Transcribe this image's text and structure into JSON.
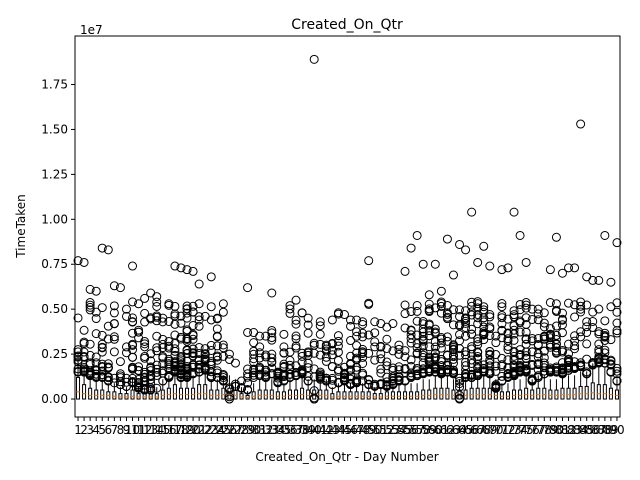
{
  "chart_data": {
    "type": "box",
    "title": "Created_On_Qtr",
    "xlabel": "Created_On_Qtr - Day Number",
    "ylabel": "TimeTaken",
    "y_offset_label": "1e7",
    "ylim": [
      -0.1,
      2.02
    ],
    "yticks": [
      0.0,
      0.25,
      0.5,
      0.75,
      1.0,
      1.25,
      1.5,
      1.75
    ],
    "ytick_labels": [
      "0.00",
      "0.25",
      "0.50",
      "0.75",
      "1.00",
      "1.25",
      "1.50",
      "1.75"
    ],
    "categories": [
      "1",
      "2",
      "3",
      "4",
      "5",
      "6",
      "7",
      "8",
      "9",
      "10",
      "11",
      "12",
      "13",
      "14",
      "15",
      "16",
      "17",
      "18",
      "19",
      "20",
      "21",
      "22",
      "23",
      "24",
      "25",
      "26",
      "27",
      "28",
      "29",
      "30",
      "31",
      "32",
      "33",
      "34",
      "35",
      "36",
      "37",
      "38",
      "39",
      "40",
      "41",
      "42",
      "43",
      "44",
      "45",
      "46",
      "47",
      "48",
      "49",
      "50",
      "51",
      "52",
      "53",
      "54",
      "55",
      "56",
      "57",
      "58",
      "59",
      "60",
      "61",
      "62",
      "63",
      "64",
      "65",
      "66",
      "67",
      "68",
      "69",
      "70",
      "71",
      "72",
      "73",
      "74",
      "75",
      "76",
      "77",
      "78",
      "79",
      "80",
      "81",
      "82",
      "83",
      "84",
      "85",
      "86",
      "87",
      "88",
      "89",
      "90"
    ],
    "box_q3": [
      0.12,
      0.08,
      0.06,
      0.05,
      0.05,
      0.04,
      0.04,
      0.03,
      0.03,
      0.05,
      0.03,
      0.03,
      0.03,
      0.03,
      0.05,
      0.06,
      0.08,
      0.06,
      0.06,
      0.06,
      0.08,
      0.08,
      0.05,
      0.05,
      0.06,
      0.06,
      0.05,
      0.03,
      0.02,
      0.04,
      0.05,
      0.05,
      0.05,
      0.04,
      0.04,
      0.05,
      0.05,
      0.06,
      0.05,
      0.05,
      0.05,
      0.05,
      0.03,
      0.04,
      0.04,
      0.04,
      0.04,
      0.04,
      0.04,
      0.03,
      0.03,
      0.04,
      0.04,
      0.04,
      0.04,
      0.04,
      0.04,
      0.05,
      0.05,
      0.06,
      0.06,
      0.06,
      0.05,
      0.05,
      0.05,
      0.06,
      0.06,
      0.06,
      0.06,
      0.05,
      0.04,
      0.04,
      0.05,
      0.05,
      0.06,
      0.05,
      0.06,
      0.06,
      0.05,
      0.05,
      0.06,
      0.06,
      0.06,
      0.07,
      0.07,
      0.09,
      0.08,
      0.08,
      0.06,
      0.05
    ],
    "medians": [
      0.04,
      0.03,
      0.02,
      0.02,
      0.02,
      0.02,
      0.015,
      0.012,
      0.012,
      0.015,
      0.012,
      0.012,
      0.012,
      0.012,
      0.02,
      0.025,
      0.03,
      0.025,
      0.025,
      0.025,
      0.03,
      0.03,
      0.02,
      0.02,
      0.025,
      0.025,
      0.02,
      0.012,
      0.008,
      0.015,
      0.02,
      0.02,
      0.02,
      0.015,
      0.015,
      0.02,
      0.02,
      0.025,
      0.02,
      0.02,
      0.02,
      0.02,
      0.012,
      0.015,
      0.015,
      0.015,
      0.015,
      0.015,
      0.015,
      0.012,
      0.012,
      0.015,
      0.015,
      0.015,
      0.015,
      0.015,
      0.015,
      0.02,
      0.02,
      0.025,
      0.025,
      0.025,
      0.02,
      0.02,
      0.02,
      0.025,
      0.025,
      0.025,
      0.025,
      0.02,
      0.015,
      0.015,
      0.02,
      0.02,
      0.025,
      0.02,
      0.025,
      0.025,
      0.02,
      0.02,
      0.025,
      0.025,
      0.025,
      0.03,
      0.03,
      0.035,
      0.03,
      0.03,
      0.025,
      0.02
    ],
    "outlier_max": [
      0.77,
      0.76,
      0.61,
      0.6,
      0.84,
      0.83,
      0.63,
      0.62,
      0.5,
      0.74,
      0.53,
      0.56,
      0.59,
      0.57,
      0.45,
      0.53,
      0.74,
      0.73,
      0.72,
      0.71,
      0.64,
      0.46,
      0.68,
      0.45,
      0.53,
      0.25,
      0.2,
      0.1,
      0.62,
      0.37,
      0.35,
      0.35,
      0.59,
      0.15,
      0.36,
      0.52,
      0.55,
      0.48,
      0.45,
      1.89,
      0.43,
      0.3,
      0.44,
      0.48,
      0.47,
      0.44,
      0.44,
      0.43,
      0.77,
      0.43,
      0.42,
      0.4,
      0.42,
      0.3,
      0.71,
      0.84,
      0.91,
      0.75,
      0.58,
      0.75,
      0.6,
      0.89,
      0.69,
      0.86,
      0.83,
      1.04,
      0.76,
      0.85,
      0.74,
      0.35,
      0.72,
      0.73,
      1.04,
      0.91,
      0.76,
      0.5,
      0.5,
      0.48,
      0.72,
      0.9,
      0.7,
      0.73,
      0.73,
      1.53,
      0.68,
      0.66,
      0.66,
      0.91,
      0.65,
      0.87
    ],
    "outlier_min": [
      0.15,
      0.15,
      0.13,
      0.12,
      0.12,
      0.1,
      0.09,
      0.08,
      0.07,
      0.09,
      0.06,
      0.05,
      0.05,
      0.06,
      0.1,
      0.12,
      0.15,
      0.12,
      0.12,
      0.14,
      0.15,
      0.16,
      0.12,
      0.12,
      0.1,
      0.0,
      0.07,
      0.06,
      0.05,
      0.12,
      0.13,
      0.12,
      0.14,
      0.09,
      0.1,
      0.12,
      0.13,
      0.14,
      0.1,
      0.0,
      0.11,
      0.1,
      0.08,
      0.09,
      0.1,
      0.08,
      0.09,
      0.1,
      0.08,
      0.07,
      0.08,
      0.07,
      0.08,
      0.1,
      0.1,
      0.12,
      0.13,
      0.14,
      0.15,
      0.15,
      0.14,
      0.15,
      0.14,
      0.0,
      0.12,
      0.12,
      0.13,
      0.15,
      0.14,
      0.06,
      0.1,
      0.12,
      0.13,
      0.15,
      0.15,
      0.1,
      0.12,
      0.14,
      0.15,
      0.15,
      0.14,
      0.16,
      0.17,
      0.18,
      0.14,
      0.19,
      0.2,
      0.2,
      0.15,
      0.1
    ],
    "outlier_density": [
      10,
      12,
      14,
      12,
      14,
      10,
      8,
      6,
      6,
      18,
      20,
      22,
      14,
      12,
      10,
      14,
      22,
      24,
      26,
      22,
      16,
      12,
      14,
      12,
      10,
      6,
      4,
      4,
      6,
      10,
      8,
      10,
      12,
      8,
      10,
      12,
      12,
      12,
      10,
      8,
      10,
      10,
      8,
      10,
      12,
      14,
      14,
      12,
      8,
      8,
      8,
      10,
      10,
      10,
      10,
      12,
      14,
      18,
      22,
      22,
      20,
      18,
      18,
      16,
      16,
      20,
      22,
      22,
      18,
      12,
      14,
      16,
      22,
      24,
      22,
      12,
      14,
      16,
      16,
      18,
      16,
      14,
      14,
      10,
      10,
      10,
      12,
      12,
      10,
      10
    ]
  }
}
